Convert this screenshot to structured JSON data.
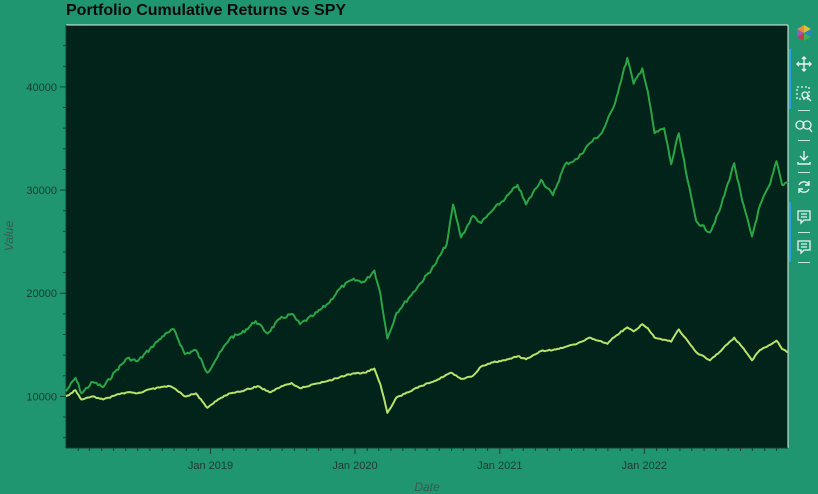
{
  "chart_data": {
    "type": "line",
    "title": "Portfolio Cumulative Returns vs SPY",
    "xlabel": "Date",
    "ylabel": "Value",
    "xlim": [
      "2018-01-01",
      "2022-12-30"
    ],
    "ylim": [
      5000,
      46000
    ],
    "x_ticks": [
      "Jan 2019",
      "Jan 2020",
      "Jan 2021",
      "Jan 2022"
    ],
    "y_ticks": [
      10000,
      20000,
      30000,
      40000
    ],
    "grid": false,
    "colors": {
      "background": "#1f9570",
      "plot_background": "#01231a",
      "tick_text": "#1c3b30"
    },
    "series": [
      {
        "color": "#2aa545",
        "points": [
          [
            "2018-01-01",
            10500
          ],
          [
            "2018-01-25",
            11800
          ],
          [
            "2018-02-09",
            10300
          ],
          [
            "2018-03-10",
            11400
          ],
          [
            "2018-04-05",
            10900
          ],
          [
            "2018-05-05",
            12400
          ],
          [
            "2018-06-05",
            13700
          ],
          [
            "2018-07-01",
            13400
          ],
          [
            "2018-08-01",
            14600
          ],
          [
            "2018-09-01",
            15800
          ],
          [
            "2018-10-01",
            16500
          ],
          [
            "2018-10-28",
            14100
          ],
          [
            "2018-11-25",
            14500
          ],
          [
            "2018-12-24",
            12300
          ],
          [
            "2019-01-20",
            13900
          ],
          [
            "2019-02-20",
            15700
          ],
          [
            "2019-03-20",
            16100
          ],
          [
            "2019-04-25",
            17300
          ],
          [
            "2019-05-25",
            16100
          ],
          [
            "2019-06-25",
            17500
          ],
          [
            "2019-07-25",
            18000
          ],
          [
            "2019-08-15",
            17000
          ],
          [
            "2019-09-20",
            17900
          ],
          [
            "2019-10-25",
            19000
          ],
          [
            "2019-11-25",
            20500
          ],
          [
            "2019-12-25",
            21300
          ],
          [
            "2020-01-25",
            21100
          ],
          [
            "2020-02-19",
            22200
          ],
          [
            "2020-03-05",
            20000
          ],
          [
            "2020-03-23",
            15600
          ],
          [
            "2020-04-15",
            18100
          ],
          [
            "2020-05-15",
            19500
          ],
          [
            "2020-06-15",
            21000
          ],
          [
            "2020-07-20",
            22700
          ],
          [
            "2020-08-20",
            24800
          ],
          [
            "2020-09-05",
            28600
          ],
          [
            "2020-09-25",
            25400
          ],
          [
            "2020-10-25",
            27500
          ],
          [
            "2020-11-15",
            26800
          ],
          [
            "2020-12-15",
            28100
          ],
          [
            "2021-01-15",
            29200
          ],
          [
            "2021-02-15",
            30500
          ],
          [
            "2021-03-08",
            28600
          ],
          [
            "2021-04-15",
            31000
          ],
          [
            "2021-05-15",
            29500
          ],
          [
            "2021-06-15",
            32500
          ],
          [
            "2021-07-15",
            33000
          ],
          [
            "2021-08-15",
            34500
          ],
          [
            "2021-09-15",
            35500
          ],
          [
            "2021-10-15",
            38000
          ],
          [
            "2021-11-19",
            42800
          ],
          [
            "2021-12-05",
            40300
          ],
          [
            "2021-12-27",
            41800
          ],
          [
            "2022-01-10",
            39500
          ],
          [
            "2022-01-27",
            35500
          ],
          [
            "2022-02-20",
            36000
          ],
          [
            "2022-03-10",
            32500
          ],
          [
            "2022-03-29",
            35500
          ],
          [
            "2022-04-20",
            31000
          ],
          [
            "2022-05-12",
            27000
          ],
          [
            "2022-06-16",
            25900
          ],
          [
            "2022-07-10",
            28000
          ],
          [
            "2022-08-16",
            32600
          ],
          [
            "2022-09-05",
            29000
          ],
          [
            "2022-09-30",
            25500
          ],
          [
            "2022-10-20",
            28500
          ],
          [
            "2022-11-15",
            30600
          ],
          [
            "2022-12-01",
            32800
          ],
          [
            "2022-12-15",
            30500
          ],
          [
            "2022-12-30",
            30800
          ]
        ]
      },
      {
        "color": "#b7e36a",
        "points": [
          [
            "2018-01-01",
            10000
          ],
          [
            "2018-01-25",
            10600
          ],
          [
            "2018-02-09",
            9700
          ],
          [
            "2018-03-10",
            10000
          ],
          [
            "2018-04-05",
            9700
          ],
          [
            "2018-05-05",
            10100
          ],
          [
            "2018-06-05",
            10400
          ],
          [
            "2018-07-01",
            10300
          ],
          [
            "2018-08-01",
            10700
          ],
          [
            "2018-09-20",
            11000
          ],
          [
            "2018-10-01",
            10800
          ],
          [
            "2018-10-28",
            10000
          ],
          [
            "2018-11-25",
            10300
          ],
          [
            "2018-12-24",
            8900
          ],
          [
            "2019-01-20",
            9700
          ],
          [
            "2019-02-20",
            10300
          ],
          [
            "2019-03-20",
            10500
          ],
          [
            "2019-04-30",
            11000
          ],
          [
            "2019-05-30",
            10400
          ],
          [
            "2019-06-30",
            11000
          ],
          [
            "2019-07-25",
            11300
          ],
          [
            "2019-08-15",
            10800
          ],
          [
            "2019-09-20",
            11200
          ],
          [
            "2019-10-25",
            11500
          ],
          [
            "2019-11-25",
            11900
          ],
          [
            "2019-12-25",
            12200
          ],
          [
            "2020-01-25",
            12300
          ],
          [
            "2020-02-19",
            12700
          ],
          [
            "2020-03-05",
            11200
          ],
          [
            "2020-03-23",
            8400
          ],
          [
            "2020-04-15",
            9900
          ],
          [
            "2020-05-15",
            10400
          ],
          [
            "2020-06-15",
            11000
          ],
          [
            "2020-07-20",
            11500
          ],
          [
            "2020-08-31",
            12300
          ],
          [
            "2020-09-25",
            11700
          ],
          [
            "2020-10-25",
            12000
          ],
          [
            "2020-11-15",
            12900
          ],
          [
            "2020-12-15",
            13300
          ],
          [
            "2021-01-15",
            13500
          ],
          [
            "2021-02-15",
            13900
          ],
          [
            "2021-03-08",
            13600
          ],
          [
            "2021-04-15",
            14400
          ],
          [
            "2021-05-15",
            14500
          ],
          [
            "2021-06-15",
            14800
          ],
          [
            "2021-07-15",
            15100
          ],
          [
            "2021-08-15",
            15700
          ],
          [
            "2021-09-30",
            15100
          ],
          [
            "2021-10-15",
            15700
          ],
          [
            "2021-11-19",
            16700
          ],
          [
            "2021-12-05",
            16300
          ],
          [
            "2021-12-27",
            17000
          ],
          [
            "2022-01-10",
            16600
          ],
          [
            "2022-01-27",
            15700
          ],
          [
            "2022-02-20",
            15500
          ],
          [
            "2022-03-10",
            15300
          ],
          [
            "2022-03-29",
            16500
          ],
          [
            "2022-04-20",
            15400
          ],
          [
            "2022-05-12",
            14300
          ],
          [
            "2022-06-16",
            13500
          ],
          [
            "2022-07-10",
            14300
          ],
          [
            "2022-08-16",
            15700
          ],
          [
            "2022-09-05",
            14800
          ],
          [
            "2022-09-30",
            13500
          ],
          [
            "2022-10-20",
            14500
          ],
          [
            "2022-11-15",
            15000
          ],
          [
            "2022-12-01",
            15400
          ],
          [
            "2022-12-15",
            14600
          ],
          [
            "2022-12-30",
            14300
          ]
        ]
      }
    ]
  },
  "toolbar": {
    "accent_color": "#26a3e0",
    "tools": [
      {
        "icon": "bokeh-logo-icon",
        "active": false
      },
      {
        "icon": "pan-icon",
        "active": true
      },
      {
        "icon": "box-zoom-icon",
        "active": true
      },
      {
        "icon": "wheel-zoom-icon",
        "active": false
      },
      {
        "icon": "save-icon",
        "active": false
      },
      {
        "icon": "reset-icon",
        "active": false
      },
      {
        "icon": "hover-icon",
        "active": true
      },
      {
        "icon": "hover-icon",
        "active": true
      }
    ]
  }
}
